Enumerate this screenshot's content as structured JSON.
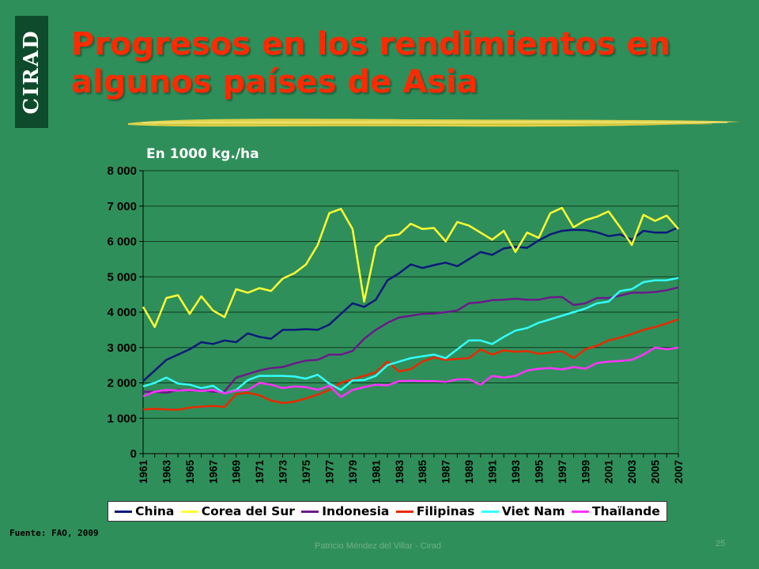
{
  "logo": "CIRAD",
  "title_lines": [
    "Progresos en los rendimientos en",
    "algunos países de Asia"
  ],
  "source": "Fuente: FAO, 2009",
  "footer": "Patricio Méndez del Villar - Cirad",
  "page_number": "25",
  "colors": {
    "background": "#2f8f5a",
    "plot_area": "#2f8f5a",
    "title": "#ff2a00",
    "brush": "#e8d64a"
  },
  "chart_data": {
    "type": "line",
    "title": "",
    "unit_label": "En 1000 kg./ha",
    "xlabel": "",
    "ylabel": "",
    "ylim": [
      0,
      8000
    ],
    "yticks": [
      0,
      1000,
      2000,
      3000,
      4000,
      5000,
      6000,
      7000,
      8000
    ],
    "ytick_labels": [
      "0",
      "1 000",
      "2 000",
      "3 000",
      "4 000",
      "5 000",
      "6 000",
      "7 000",
      "8 000"
    ],
    "x": [
      1961,
      1962,
      1963,
      1964,
      1965,
      1966,
      1967,
      1968,
      1969,
      1970,
      1971,
      1972,
      1973,
      1974,
      1975,
      1976,
      1977,
      1978,
      1979,
      1980,
      1981,
      1982,
      1983,
      1984,
      1985,
      1986,
      1987,
      1988,
      1989,
      1990,
      1991,
      1992,
      1993,
      1994,
      1995,
      1996,
      1997,
      1998,
      1999,
      2000,
      2001,
      2002,
      2003,
      2004,
      2005,
      2006,
      2007
    ],
    "xtick_labels": [
      "1961",
      "1963",
      "1965",
      "1967",
      "1969",
      "1971",
      "1973",
      "1975",
      "1977",
      "1979",
      "1981",
      "1983",
      "1985",
      "1987",
      "1989",
      "1991",
      "1993",
      "1995",
      "1997",
      "1999",
      "2001",
      "2003",
      "2005",
      "2007"
    ],
    "grid": true,
    "legend_position": "bottom",
    "series": [
      {
        "name": "China",
        "color": "#0a1a7a",
        "values": [
          2050,
          2350,
          2650,
          2800,
          2950,
          3150,
          3100,
          3200,
          3150,
          3400,
          3300,
          3250,
          3500,
          3500,
          3520,
          3500,
          3650,
          3950,
          4250,
          4150,
          4350,
          4900,
          5100,
          5350,
          5250,
          5330,
          5400,
          5300,
          5500,
          5700,
          5620,
          5800,
          5850,
          5820,
          6030,
          6200,
          6300,
          6330,
          6320,
          6260,
          6150,
          6200,
          6050,
          6300,
          6250,
          6250,
          6400
        ]
      },
      {
        "name": "Corea del Sur",
        "color": "#ffff33",
        "values": [
          4150,
          3580,
          4400,
          4480,
          3950,
          4450,
          4050,
          3860,
          4650,
          4550,
          4680,
          4600,
          4950,
          5100,
          5350,
          5900,
          6800,
          6920,
          6350,
          4300,
          5850,
          6150,
          6200,
          6500,
          6350,
          6380,
          6000,
          6550,
          6450,
          6250,
          6050,
          6300,
          5700,
          6250,
          6100,
          6800,
          6950,
          6400,
          6600,
          6700,
          6850,
          6400,
          5900,
          6750,
          6580,
          6730,
          6350
        ]
      },
      {
        "name": "Indonesia",
        "color": "#6a1a8a",
        "values": [
          1750,
          1750,
          1720,
          1800,
          1780,
          1800,
          1750,
          1760,
          2150,
          2250,
          2350,
          2420,
          2450,
          2550,
          2630,
          2650,
          2800,
          2800,
          2900,
          3250,
          3500,
          3700,
          3850,
          3900,
          3950,
          3960,
          4000,
          4050,
          4250,
          4280,
          4340,
          4350,
          4380,
          4350,
          4350,
          4420,
          4430,
          4200,
          4250,
          4400,
          4400,
          4470,
          4550,
          4550,
          4570,
          4620,
          4700
        ]
      },
      {
        "name": "Filipinas",
        "color": "#e82a00",
        "values": [
          1250,
          1270,
          1250,
          1240,
          1300,
          1330,
          1350,
          1320,
          1680,
          1720,
          1650,
          1500,
          1430,
          1470,
          1560,
          1670,
          1800,
          2000,
          2100,
          2200,
          2300,
          2600,
          2320,
          2390,
          2600,
          2720,
          2650,
          2680,
          2700,
          2950,
          2800,
          2920,
          2880,
          2900,
          2820,
          2860,
          2900,
          2700,
          2950,
          3050,
          3200,
          3280,
          3380,
          3500,
          3580,
          3680,
          3800
        ]
      },
      {
        "name": "Viet Nam",
        "color": "#33ffff",
        "values": [
          1900,
          2000,
          2150,
          1980,
          1950,
          1850,
          1920,
          1700,
          1800,
          2080,
          2200,
          2200,
          2200,
          2180,
          2120,
          2230,
          1980,
          1800,
          2070,
          2080,
          2200,
          2500,
          2600,
          2700,
          2750,
          2800,
          2700,
          2950,
          3200,
          3200,
          3100,
          3300,
          3480,
          3550,
          3700,
          3800,
          3900,
          4000,
          4100,
          4250,
          4300,
          4600,
          4650,
          4850,
          4900,
          4900,
          4970
        ]
      },
      {
        "name": "Thaïlande",
        "color": "#ff33ff",
        "values": [
          1620,
          1750,
          1800,
          1780,
          1800,
          1770,
          1800,
          1700,
          1780,
          1800,
          2000,
          1950,
          1850,
          1900,
          1880,
          1800,
          1920,
          1600,
          1800,
          1880,
          1950,
          1930,
          2050,
          2060,
          2050,
          2050,
          2030,
          2100,
          2100,
          1950,
          2200,
          2150,
          2200,
          2350,
          2400,
          2420,
          2380,
          2450,
          2400,
          2560,
          2600,
          2620,
          2650,
          2800,
          3000,
          2950,
          3000
        ]
      }
    ]
  }
}
